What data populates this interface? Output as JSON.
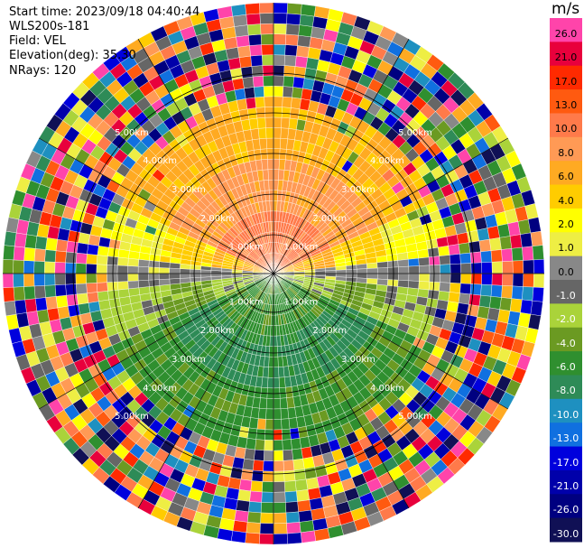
{
  "header": {
    "start_time": "Start time: 2023/09/18 04:40:44",
    "instrument": "WLS200s-181",
    "field": "Field: VEL",
    "elevation": "Elevation(deg): 35.30",
    "nrays": "NRays: 120"
  },
  "colorbar": {
    "unit": "m/s",
    "ticks": [
      "26.0",
      "21.0",
      "17.0",
      "13.0",
      "10.0",
      "8.0",
      "6.0",
      "4.0",
      "2.0",
      "1.0",
      "0.0",
      "-1.0",
      "-2.0",
      "-4.0",
      "-6.0",
      "-8.0",
      "-10.0",
      "-13.0",
      "-17.0",
      "-21.0",
      "-26.0",
      "-30.0"
    ],
    "colors": [
      "#ff44aa",
      "#e8003c",
      "#ff2a00",
      "#ff5a10",
      "#ff7a4a",
      "#ff9a55",
      "#ffaa22",
      "#ffcc00",
      "#ffff00",
      "#eeee44",
      "#888888",
      "#666666",
      "#aad33a",
      "#6b9a22",
      "#2f8f2f",
      "#2e8b57",
      "#1e90c0",
      "#1070e0",
      "#0000dd",
      "#0000aa",
      "#000080",
      "#101055"
    ]
  },
  "range_rings": {
    "labels": [
      "1.00km",
      "2.00km",
      "3.00km",
      "4.00km",
      "5.00km"
    ]
  },
  "rays": 120
}
